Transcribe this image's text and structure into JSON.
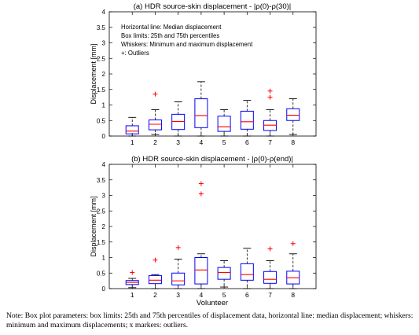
{
  "chart_data": [
    {
      "type": "box",
      "title": "(a) HDR source-skin displacement - |ρ(0)-ρ(30)|",
      "xlabel": "",
      "ylabel": "Displacement [mm]",
      "ylim": [
        0,
        4
      ],
      "yticks": [
        "0",
        "0.5",
        "1",
        "1.5",
        "2",
        "2.5",
        "3",
        "3.5",
        "4"
      ],
      "categories": [
        "1",
        "2",
        "3",
        "4",
        "5",
        "6",
        "7",
        "8"
      ],
      "legend_text": [
        "Horizontal line: Median displacement",
        "Box limits: 25th and 75th percentiles",
        "Whiskers: Minimum and maximum displacement",
        "+: Outliers"
      ],
      "legend_position": "top-left",
      "boxes": [
        {
          "min": 0.0,
          "q1": 0.07,
          "median": 0.16,
          "q3": 0.33,
          "max": 0.6,
          "outliers": []
        },
        {
          "min": 0.05,
          "q1": 0.2,
          "median": 0.38,
          "q3": 0.52,
          "max": 0.85,
          "outliers": [
            1.35
          ]
        },
        {
          "min": 0.0,
          "q1": 0.21,
          "median": 0.47,
          "q3": 0.7,
          "max": 1.1,
          "outliers": []
        },
        {
          "min": 0.0,
          "q1": 0.27,
          "median": 0.66,
          "q3": 1.2,
          "max": 1.75,
          "outliers": []
        },
        {
          "min": 0.0,
          "q1": 0.15,
          "median": 0.3,
          "q3": 0.64,
          "max": 0.85,
          "outliers": []
        },
        {
          "min": 0.0,
          "q1": 0.22,
          "median": 0.46,
          "q3": 0.8,
          "max": 1.15,
          "outliers": []
        },
        {
          "min": 0.0,
          "q1": 0.18,
          "median": 0.35,
          "q3": 0.5,
          "max": 0.85,
          "outliers": [
            1.25,
            1.45
          ]
        },
        {
          "min": 0.05,
          "q1": 0.5,
          "median": 0.67,
          "q3": 0.88,
          "max": 1.2,
          "outliers": []
        }
      ]
    },
    {
      "type": "box",
      "title": "(b) HDR source-skin displacement - |ρ(0)-ρ(end)|",
      "xlabel": "Volunteer",
      "ylabel": "Displacement [mm]",
      "ylim": [
        0,
        4
      ],
      "yticks": [
        "0",
        "0.5",
        "1",
        "1.5",
        "2",
        "2.5",
        "3",
        "3.5",
        "4"
      ],
      "categories": [
        "1",
        "2",
        "3",
        "4",
        "5",
        "6",
        "7",
        "8"
      ],
      "boxes": [
        {
          "min": 0.03,
          "q1": 0.13,
          "median": 0.2,
          "q3": 0.26,
          "max": 0.33,
          "outliers": [
            0.52
          ]
        },
        {
          "min": 0.0,
          "q1": 0.16,
          "median": 0.27,
          "q3": 0.42,
          "max": 0.45,
          "outliers": [
            0.92
          ]
        },
        {
          "min": 0.0,
          "q1": 0.12,
          "median": 0.25,
          "q3": 0.5,
          "max": 0.95,
          "outliers": [
            1.32
          ]
        },
        {
          "min": 0.0,
          "q1": 0.15,
          "median": 0.6,
          "q3": 1.0,
          "max": 1.12,
          "outliers": [
            3.05,
            3.38
          ]
        },
        {
          "min": 0.05,
          "q1": 0.3,
          "median": 0.52,
          "q3": 0.68,
          "max": 0.9,
          "outliers": []
        },
        {
          "min": 0.0,
          "q1": 0.27,
          "median": 0.45,
          "q3": 0.8,
          "max": 1.3,
          "outliers": []
        },
        {
          "min": 0.0,
          "q1": 0.17,
          "median": 0.3,
          "q3": 0.55,
          "max": 0.9,
          "outliers": [
            1.28
          ]
        },
        {
          "min": 0.0,
          "q1": 0.15,
          "median": 0.35,
          "q3": 0.56,
          "max": 1.12,
          "outliers": [
            1.45
          ]
        }
      ]
    }
  ],
  "note": "Note: Box plot parameters: box limits: 25th and 75th percentiles of displacement data, horizontal line: median displacement; whiskers: minimum and maximum displacements; x markers: outliers.",
  "colors": {
    "box": "#0000ff",
    "median": "#ff0000",
    "whisker": "#000000",
    "outlier": "#ff0000",
    "axis": "#000000"
  }
}
